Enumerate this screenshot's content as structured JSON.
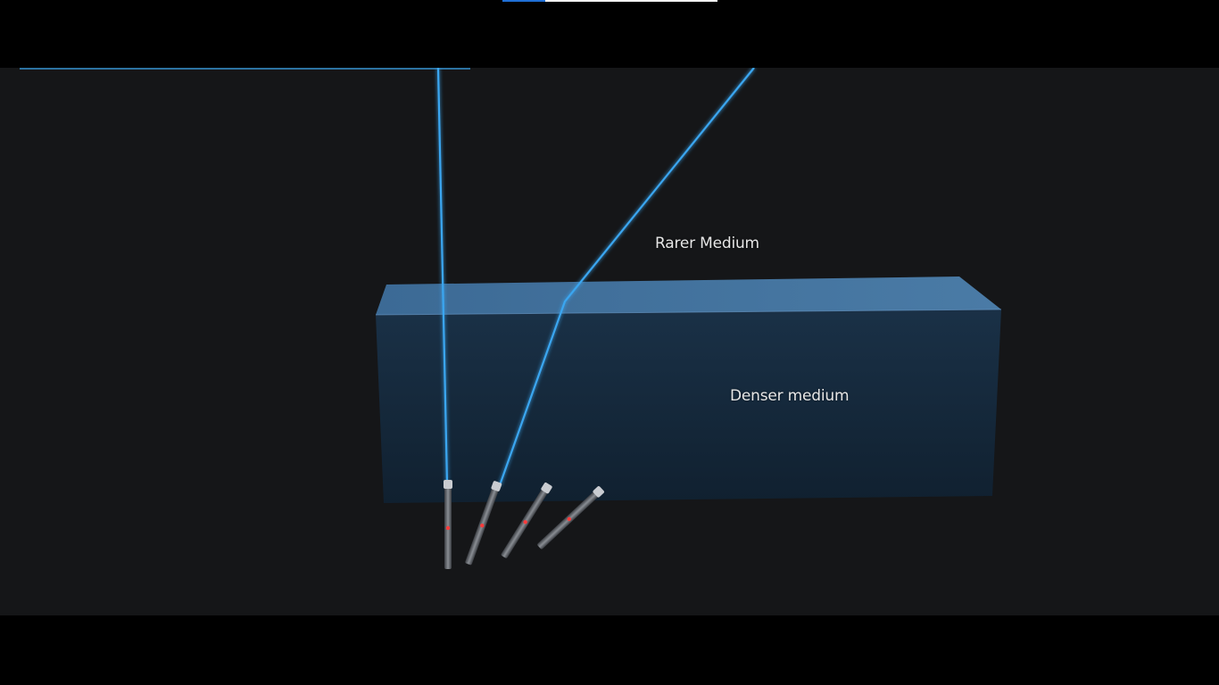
{
  "player": {
    "progress_fraction": 0.2,
    "progress_color": "#1f6fd6"
  },
  "scene": {
    "rarer_label": "Rarer Medium",
    "denser_label": "Denser medium",
    "beam_color": "#3aa6f0",
    "block_top_color": "#3f6f99",
    "block_front_color": "#14283c",
    "laser_pointer_count": 4
  }
}
